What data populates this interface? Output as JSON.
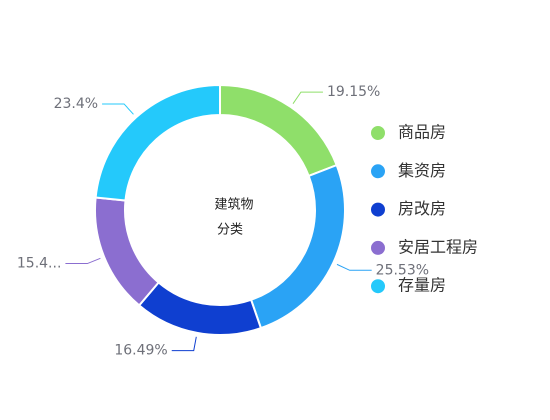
{
  "chart_data": {
    "type": "donut",
    "center_label": [
      "建筑物",
      "分类"
    ],
    "categories": [
      "商品房",
      "集资房",
      "房改房",
      "安居工程房",
      "存量房"
    ],
    "values": [
      19.15,
      25.53,
      16.49,
      15.4,
      23.4
    ],
    "value_labels": [
      "19.15%",
      "25.53%",
      "16.49%",
      "15.4...",
      "23.4%"
    ],
    "colors": [
      "#8fdf6a",
      "#2aa3f5",
      "#0f3fd0",
      "#8b6ed0",
      "#24c9fb"
    ],
    "legend": "right"
  }
}
